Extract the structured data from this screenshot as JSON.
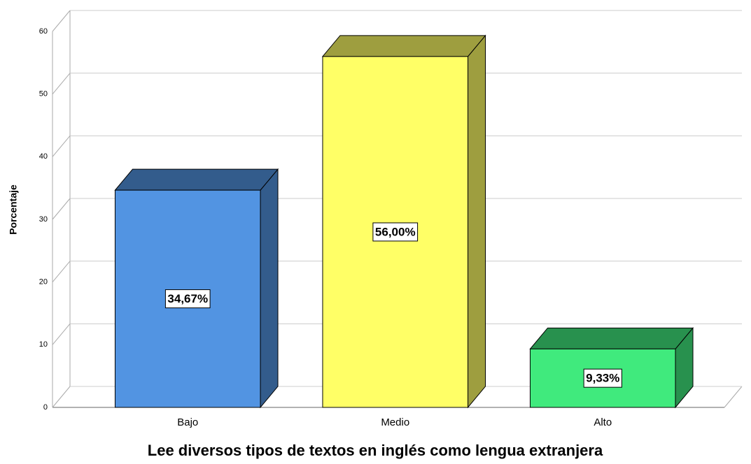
{
  "chart_data": {
    "type": "bar3d",
    "title": "Lee diversos tipos de textos en inglés como lengua extranjera",
    "ylabel": "Porcentaje",
    "categories": [
      "Bajo",
      "Medio",
      "Alto"
    ],
    "values": [
      34.67,
      56.0,
      9.33
    ],
    "value_labels": [
      "34,67%",
      "56,00%",
      "9,33%"
    ],
    "colors": [
      "#5294e2",
      "#ffff66",
      "#40ea7d"
    ],
    "ylim": [
      0,
      60
    ],
    "yticks": [
      0,
      10,
      20,
      30,
      40,
      50,
      60
    ],
    "grid": true
  }
}
